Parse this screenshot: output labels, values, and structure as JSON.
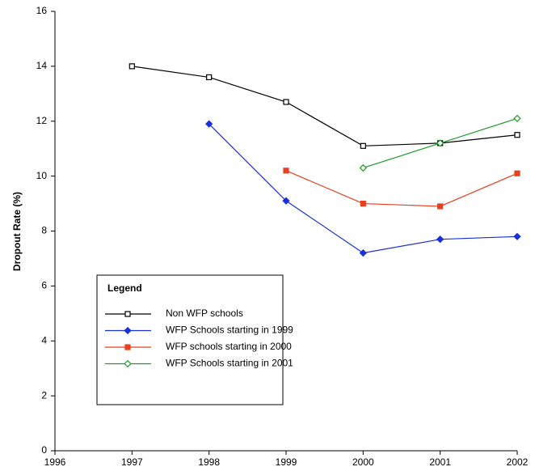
{
  "chart_data": {
    "type": "line",
    "y_label": "Dropout  Rate  (%)",
    "legend_title": "Legend",
    "x": [
      1997,
      1998,
      1999,
      2000,
      2001,
      2002
    ],
    "series": [
      {
        "name": "Non WFP schools",
        "color": "#000000",
        "marker": "square-open",
        "values": [
          14.0,
          13.6,
          12.7,
          11.1,
          11.2,
          11.5
        ]
      },
      {
        "name": "WFP Schools starting in 1999",
        "color": "#1a2fe0",
        "marker": "diamond-filled",
        "values": [
          null,
          11.9,
          9.1,
          7.2,
          7.7,
          7.8
        ]
      },
      {
        "name": "WFP schools starting in 2000",
        "color": "#e8401c",
        "marker": "square-filled",
        "values": [
          null,
          null,
          10.2,
          9.0,
          8.9,
          10.1
        ]
      },
      {
        "name": "WFP Schools starting in 2001",
        "color": "#1f9a2a",
        "marker": "diamond-open",
        "values": [
          null,
          null,
          null,
          10.3,
          11.2,
          12.1
        ]
      }
    ],
    "xlim": [
      1996,
      2002
    ],
    "xticks": [
      1996,
      1997,
      1998,
      1999,
      2000,
      2001,
      2002
    ],
    "ylim": [
      0,
      16
    ],
    "yticks": [
      0,
      2,
      4,
      6,
      8,
      10,
      12,
      14,
      16
    ]
  }
}
